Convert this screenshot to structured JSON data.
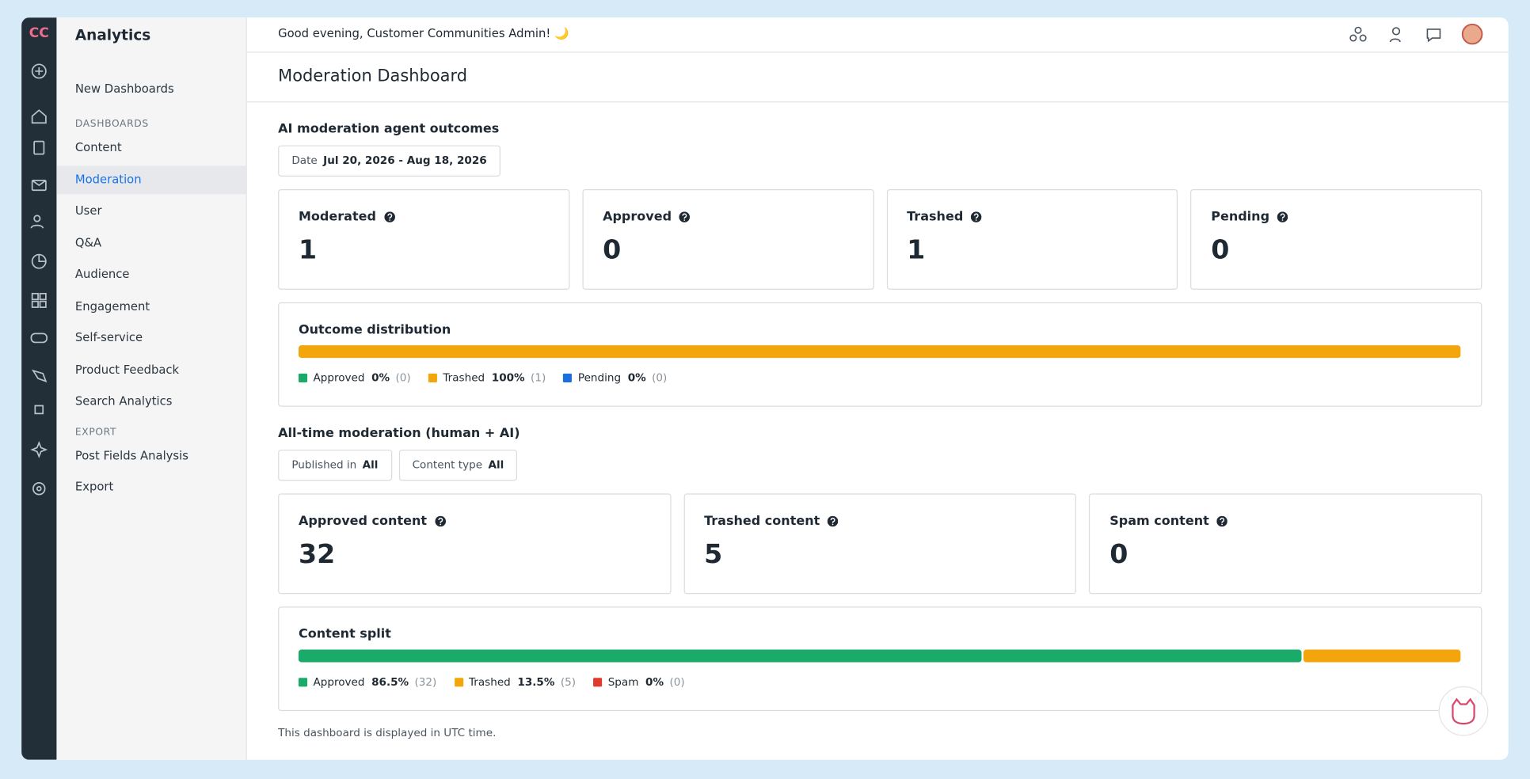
{
  "rail": {
    "logo": "CC"
  },
  "sidebar": {
    "title": "Analytics",
    "top_items": [
      "New Dashboards"
    ],
    "sections": [
      {
        "heading": "DASHBOARDS",
        "items": [
          "Content",
          "Moderation",
          "User",
          "Q&A",
          "Audience",
          "Engagement",
          "Self-service",
          "Product Feedback",
          "Search Analytics"
        ],
        "active": 1
      },
      {
        "heading": "EXPORT",
        "items": [
          "Post Fields Analysis",
          "Export"
        ]
      }
    ]
  },
  "header": {
    "greeting": "Good evening, Customer Communities Admin! 🌙"
  },
  "page": {
    "title": "Moderation Dashboard"
  },
  "sections": [
    {
      "title": "AI moderation agent outcomes",
      "filters": [
        {
          "label": "Date",
          "value": "Jul 20, 2026 - Aug 18, 2026"
        }
      ],
      "cards": [
        {
          "label": "Moderated",
          "value": 1
        },
        {
          "label": "Approved",
          "value": 0
        },
        {
          "label": "Trashed",
          "value": 1
        },
        {
          "label": "Pending",
          "value": 0
        }
      ],
      "breakdown": {
        "title": "Outcome distribution",
        "segments": [
          {
            "name": "Approved",
            "color": "#1aaa6a",
            "share": 0,
            "share_label": "0%",
            "count": 0,
            "count_label": "(0)"
          },
          {
            "name": "Trashed",
            "color": "#f2a60c",
            "share": 100,
            "share_label": "100%",
            "count": 1,
            "count_label": "(1)"
          },
          {
            "name": "Pending",
            "color": "#1a6fe0",
            "share": 0,
            "share_label": "0%",
            "count": 0,
            "count_label": "(0)"
          }
        ]
      }
    },
    {
      "title": "All-time moderation (human + AI)",
      "filters": [
        {
          "label": "Published in",
          "value": "All"
        },
        {
          "label": "Content type",
          "value": "All"
        }
      ],
      "cards": [
        {
          "label": "Approved content",
          "value": 32
        },
        {
          "label": "Trashed content",
          "value": 5
        },
        {
          "label": "Spam content",
          "value": 0
        }
      ],
      "breakdown": {
        "title": "Content split",
        "segments": [
          {
            "name": "Approved",
            "color": "#1aaa6a",
            "share": 86.5,
            "share_label": "86.5%",
            "count": 32,
            "count_label": "(32)"
          },
          {
            "name": "Trashed",
            "color": "#f2a60c",
            "share": 13.5,
            "share_label": "13.5%",
            "count": 5,
            "count_label": "(5)"
          },
          {
            "name": "Spam",
            "color": "#e03a2f",
            "share": 0,
            "share_label": "0%",
            "count": 0,
            "count_label": "(0)"
          }
        ]
      }
    }
  ],
  "footer": {
    "note": "This dashboard is displayed in UTC time."
  }
}
